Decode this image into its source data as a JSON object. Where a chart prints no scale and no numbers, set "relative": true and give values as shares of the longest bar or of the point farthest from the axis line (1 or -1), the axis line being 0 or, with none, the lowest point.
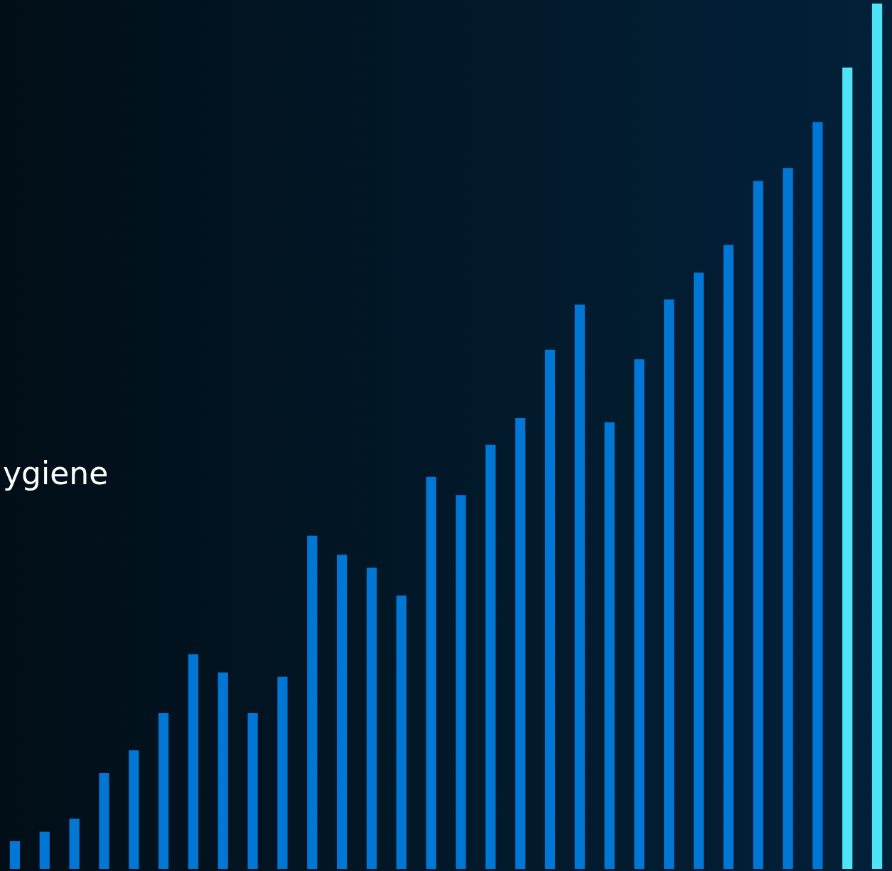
{
  "chart_data": {
    "type": "bar",
    "relative": true,
    "categories": [
      null,
      null,
      null,
      null,
      null,
      null,
      null,
      null,
      null,
      null,
      null,
      null,
      null,
      null,
      null,
      null,
      null,
      null,
      null,
      null,
      null,
      null,
      null,
      null,
      null,
      null,
      null,
      null,
      null,
      null
    ],
    "values": [
      0.032,
      0.043,
      0.058,
      0.111,
      0.137,
      0.18,
      0.248,
      0.227,
      0.18,
      0.222,
      0.385,
      0.363,
      0.348,
      0.316,
      0.453,
      0.432,
      0.49,
      0.521,
      0.6,
      0.652,
      0.516,
      0.589,
      0.658,
      0.689,
      0.721,
      0.795,
      0.81,
      0.863,
      0.926,
      1
    ],
    "colors": [
      "#0077d4",
      "#0077d4",
      "#0077d4",
      "#0077d4",
      "#0077d4",
      "#0077d4",
      "#0077d4",
      "#0077d4",
      "#0077d4",
      "#0077d4",
      "#0077d4",
      "#0077d4",
      "#0077d4",
      "#0077d4",
      "#0077d4",
      "#0077d4",
      "#0077d4",
      "#0077d4",
      "#0077d4",
      "#0077d4",
      "#0077d4",
      "#0077d4",
      "#0077d4",
      "#0077d4",
      "#0077d4",
      "#0077d4",
      "#0077d4",
      "#0077d4",
      "#4de4f8",
      "#4de4f8"
    ],
    "annotations": [
      "ygiene"
    ],
    "legend": false
  }
}
